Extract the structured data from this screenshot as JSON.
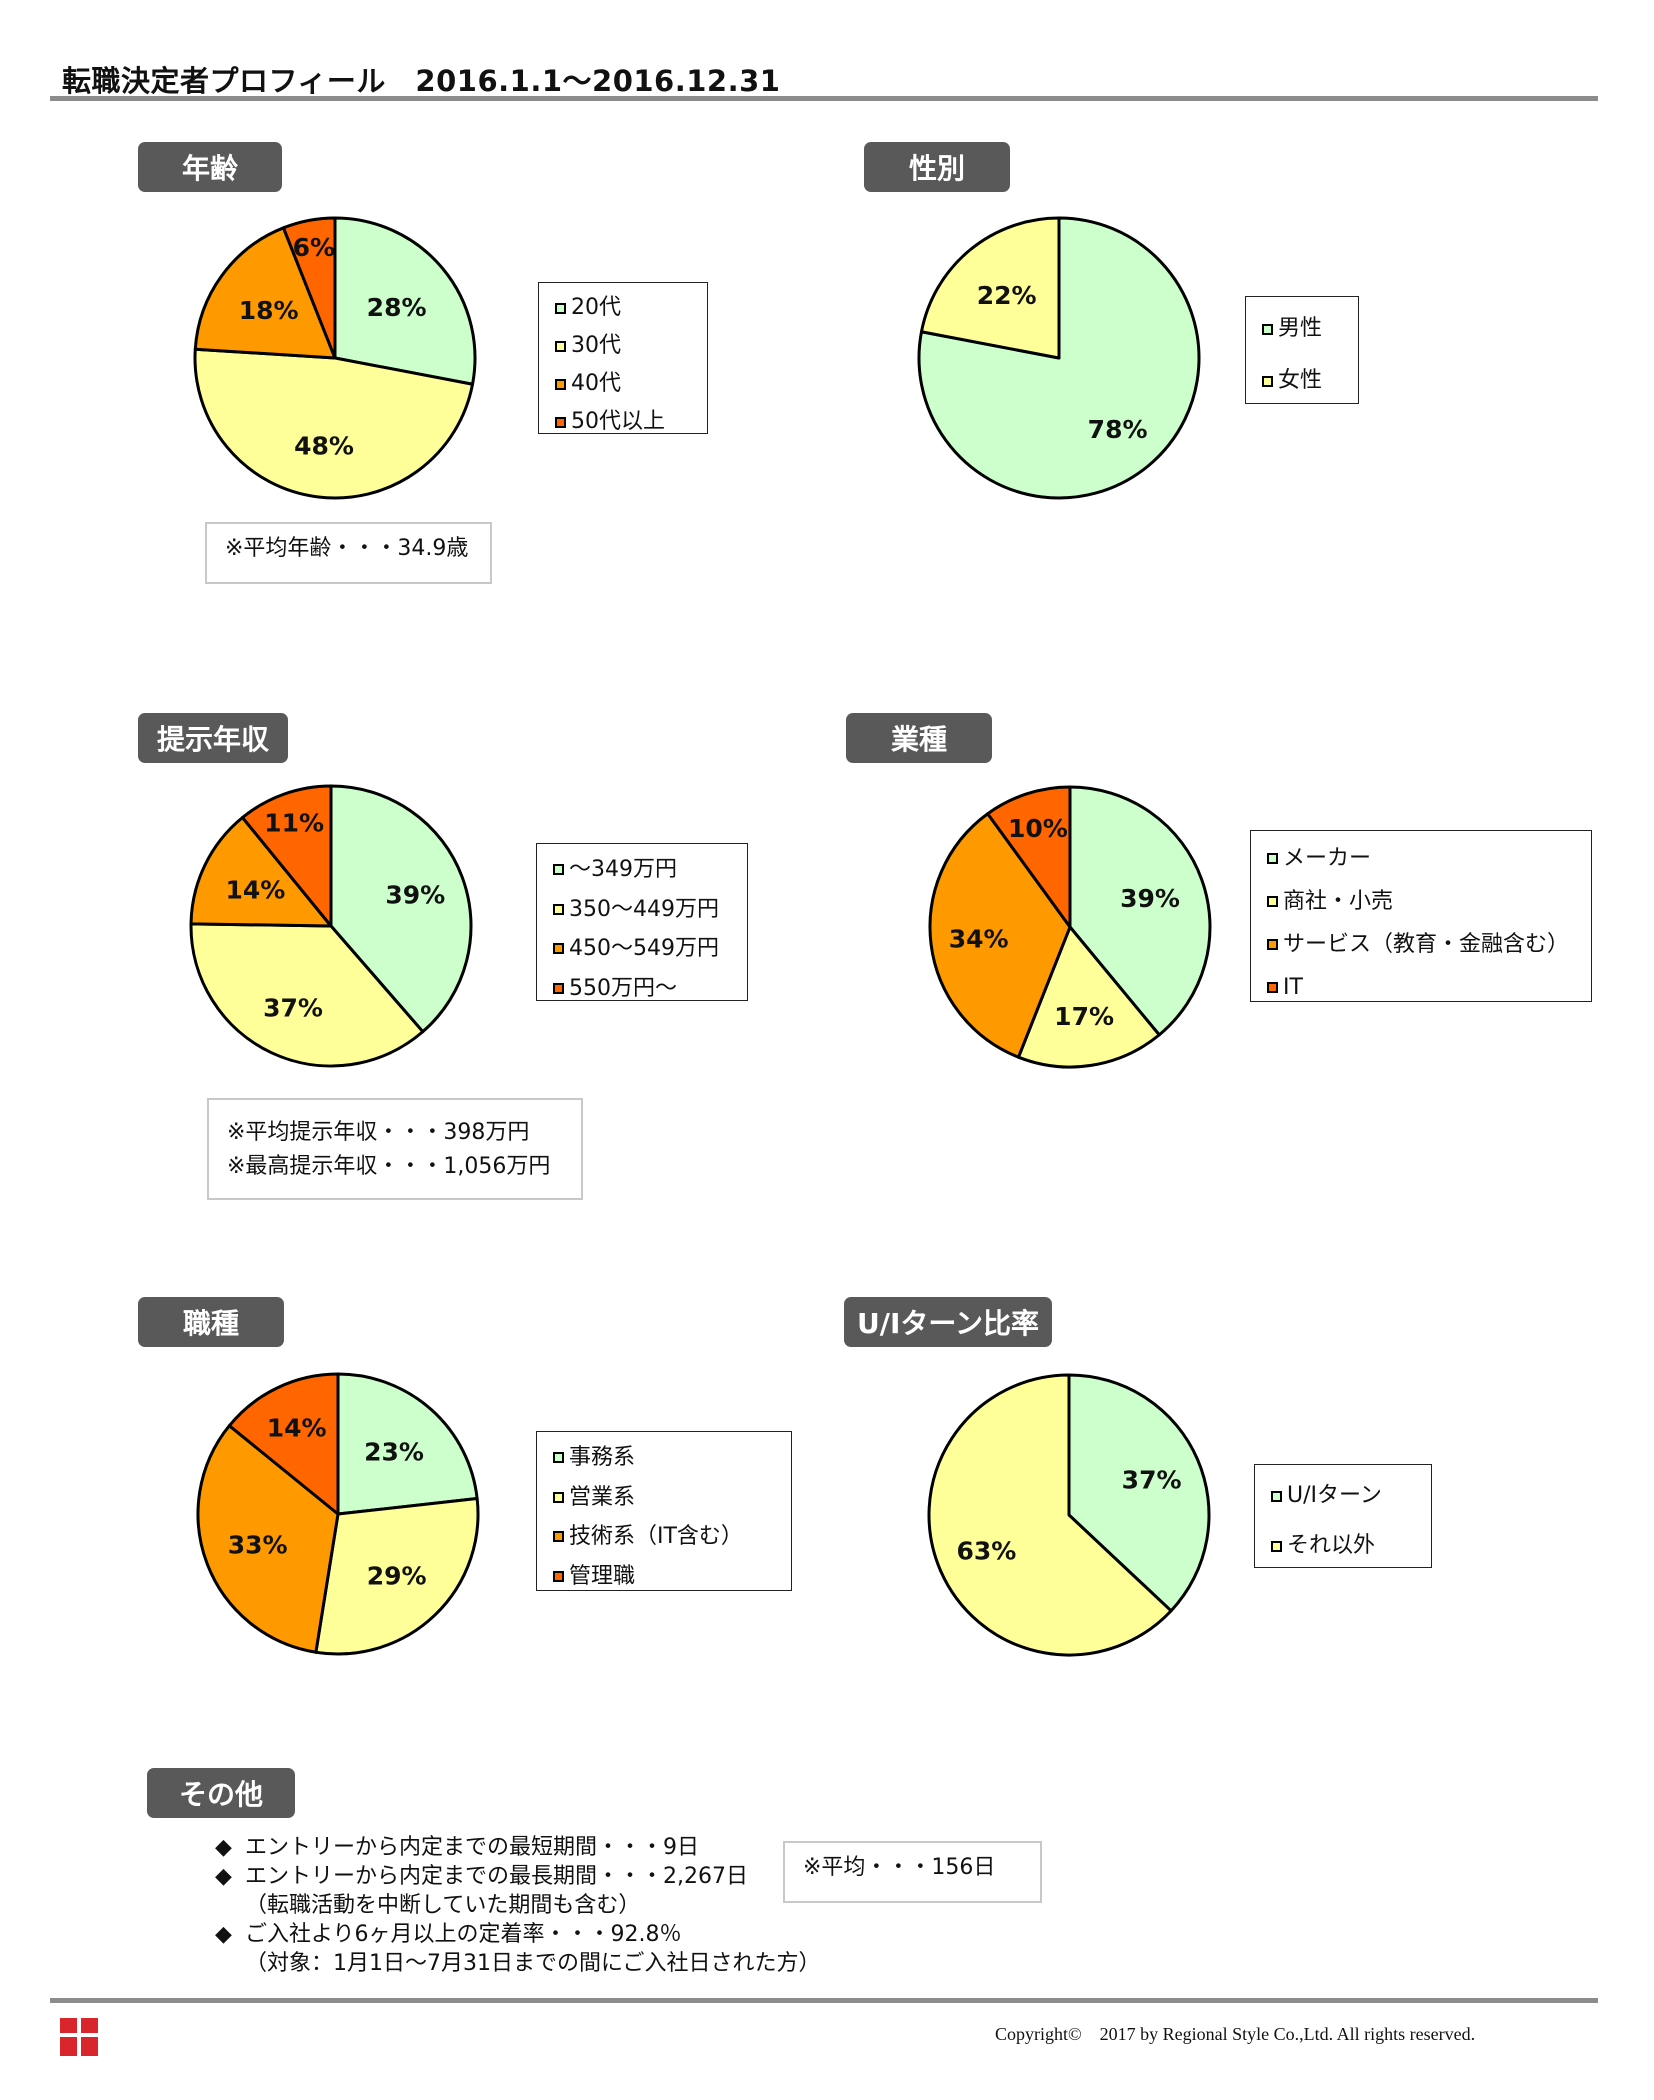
{
  "page": {
    "title": "転職決定者プロフィール　2016.1.1～2016.12.31"
  },
  "sections": {
    "age": "年齢",
    "gender": "性別",
    "salary": "提示年収",
    "industry": "業種",
    "job": "職種",
    "uiturn": "U/Iターン比率",
    "other": "その他"
  },
  "notes": {
    "age": "※平均年齢・・・34.9歳",
    "salary_avg": "※平均提示年収・・・398万円",
    "salary_max": "※最高提示年収・・・1,056万円",
    "avg_period": "※平均・・・156日"
  },
  "other": {
    "bullet": "◆",
    "items": [
      "エントリーから内定までの最短期間・・・9日",
      "エントリーから内定までの最長期間・・・2,267日",
      "（転職活動を中断していた期間も含む）",
      "ご入社より6ヶ月以上の定着率・・・92.8％",
      "（対象：1月1日～7月31日までの間にご入社日された方）"
    ]
  },
  "footer": {
    "copyright": "Copyright©　2017 by Regional Style Co.,Ltd.  All rights reserved."
  },
  "colors": {
    "green": "#ccffcc",
    "yellow": "#ffff99",
    "orange": "#ff9900",
    "red": "#ff6600",
    "pill": "#595959",
    "rule": "#8c8c8c"
  },
  "chart_data": [
    {
      "type": "pie",
      "id": "age",
      "categories": [
        "20代",
        "30代",
        "40代",
        "50代以上"
      ],
      "values": [
        28,
        48,
        18,
        6
      ],
      "labels": [
        "28%",
        "48%",
        "18%",
        "6%"
      ]
    },
    {
      "type": "pie",
      "id": "gender",
      "categories": [
        "男性",
        "女性"
      ],
      "values": [
        78,
        22
      ],
      "labels": [
        "78%",
        "22%"
      ]
    },
    {
      "type": "pie",
      "id": "salary",
      "categories": [
        "～349万円",
        "350～449万円",
        "450～549万円",
        "550万円～"
      ],
      "values": [
        39,
        37,
        14,
        11
      ],
      "labels": [
        "39%",
        "37%",
        "14%",
        "11%"
      ]
    },
    {
      "type": "pie",
      "id": "industry",
      "categories": [
        "メーカー",
        "商社・小売",
        "サービス（教育・金融含む）",
        "IT"
      ],
      "values": [
        39,
        17,
        34,
        10
      ],
      "labels": [
        "39%",
        "17%",
        "34%",
        "10%"
      ]
    },
    {
      "type": "pie",
      "id": "job",
      "categories": [
        "事務系",
        "営業系",
        "技術系（IT含む）",
        "管理職"
      ],
      "values": [
        23,
        29,
        33,
        14
      ],
      "labels": [
        "23%",
        "29%",
        "33%",
        "14%"
      ]
    },
    {
      "type": "pie",
      "id": "uiturn",
      "categories": [
        "U/Iターン",
        "それ以外"
      ],
      "values": [
        37,
        63
      ],
      "labels": [
        "37%",
        "63%"
      ]
    }
  ]
}
